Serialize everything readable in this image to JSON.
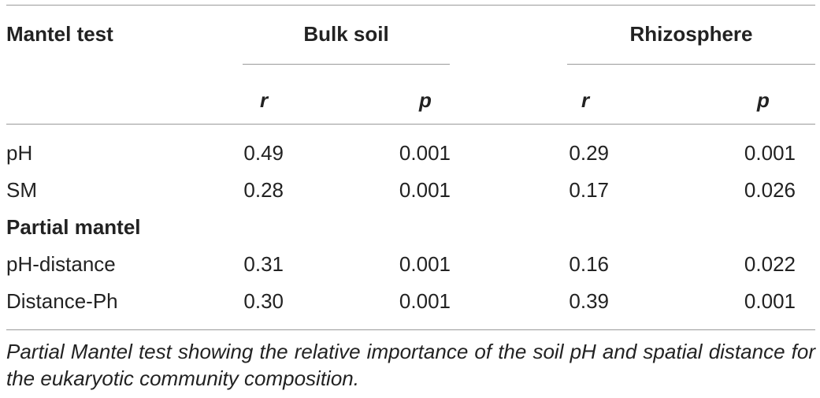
{
  "table": {
    "header": {
      "stub_label": "Mantel test",
      "groups": [
        "Bulk soil",
        "Rhizosphere"
      ],
      "subcolumns": [
        "r",
        "p",
        "r",
        "p"
      ]
    },
    "rows": [
      {
        "label": "pH",
        "values": [
          "0.49",
          "0.001",
          "0.29",
          "0.001"
        ]
      },
      {
        "label": "SM",
        "values": [
          "0.28",
          "0.001",
          "0.17",
          "0.026"
        ]
      }
    ],
    "section_label": "Partial mantel",
    "partial_rows": [
      {
        "label": "pH-distance",
        "values": [
          "0.31",
          "0.001",
          "0.16",
          "0.022"
        ]
      },
      {
        "label": "Distance-Ph",
        "values": [
          "0.30",
          "0.001",
          "0.39",
          "0.001"
        ]
      }
    ]
  },
  "caption": "Partial Mantel test showing the relative importance of the soil pH and spatial distance for the eukaryotic community composition."
}
